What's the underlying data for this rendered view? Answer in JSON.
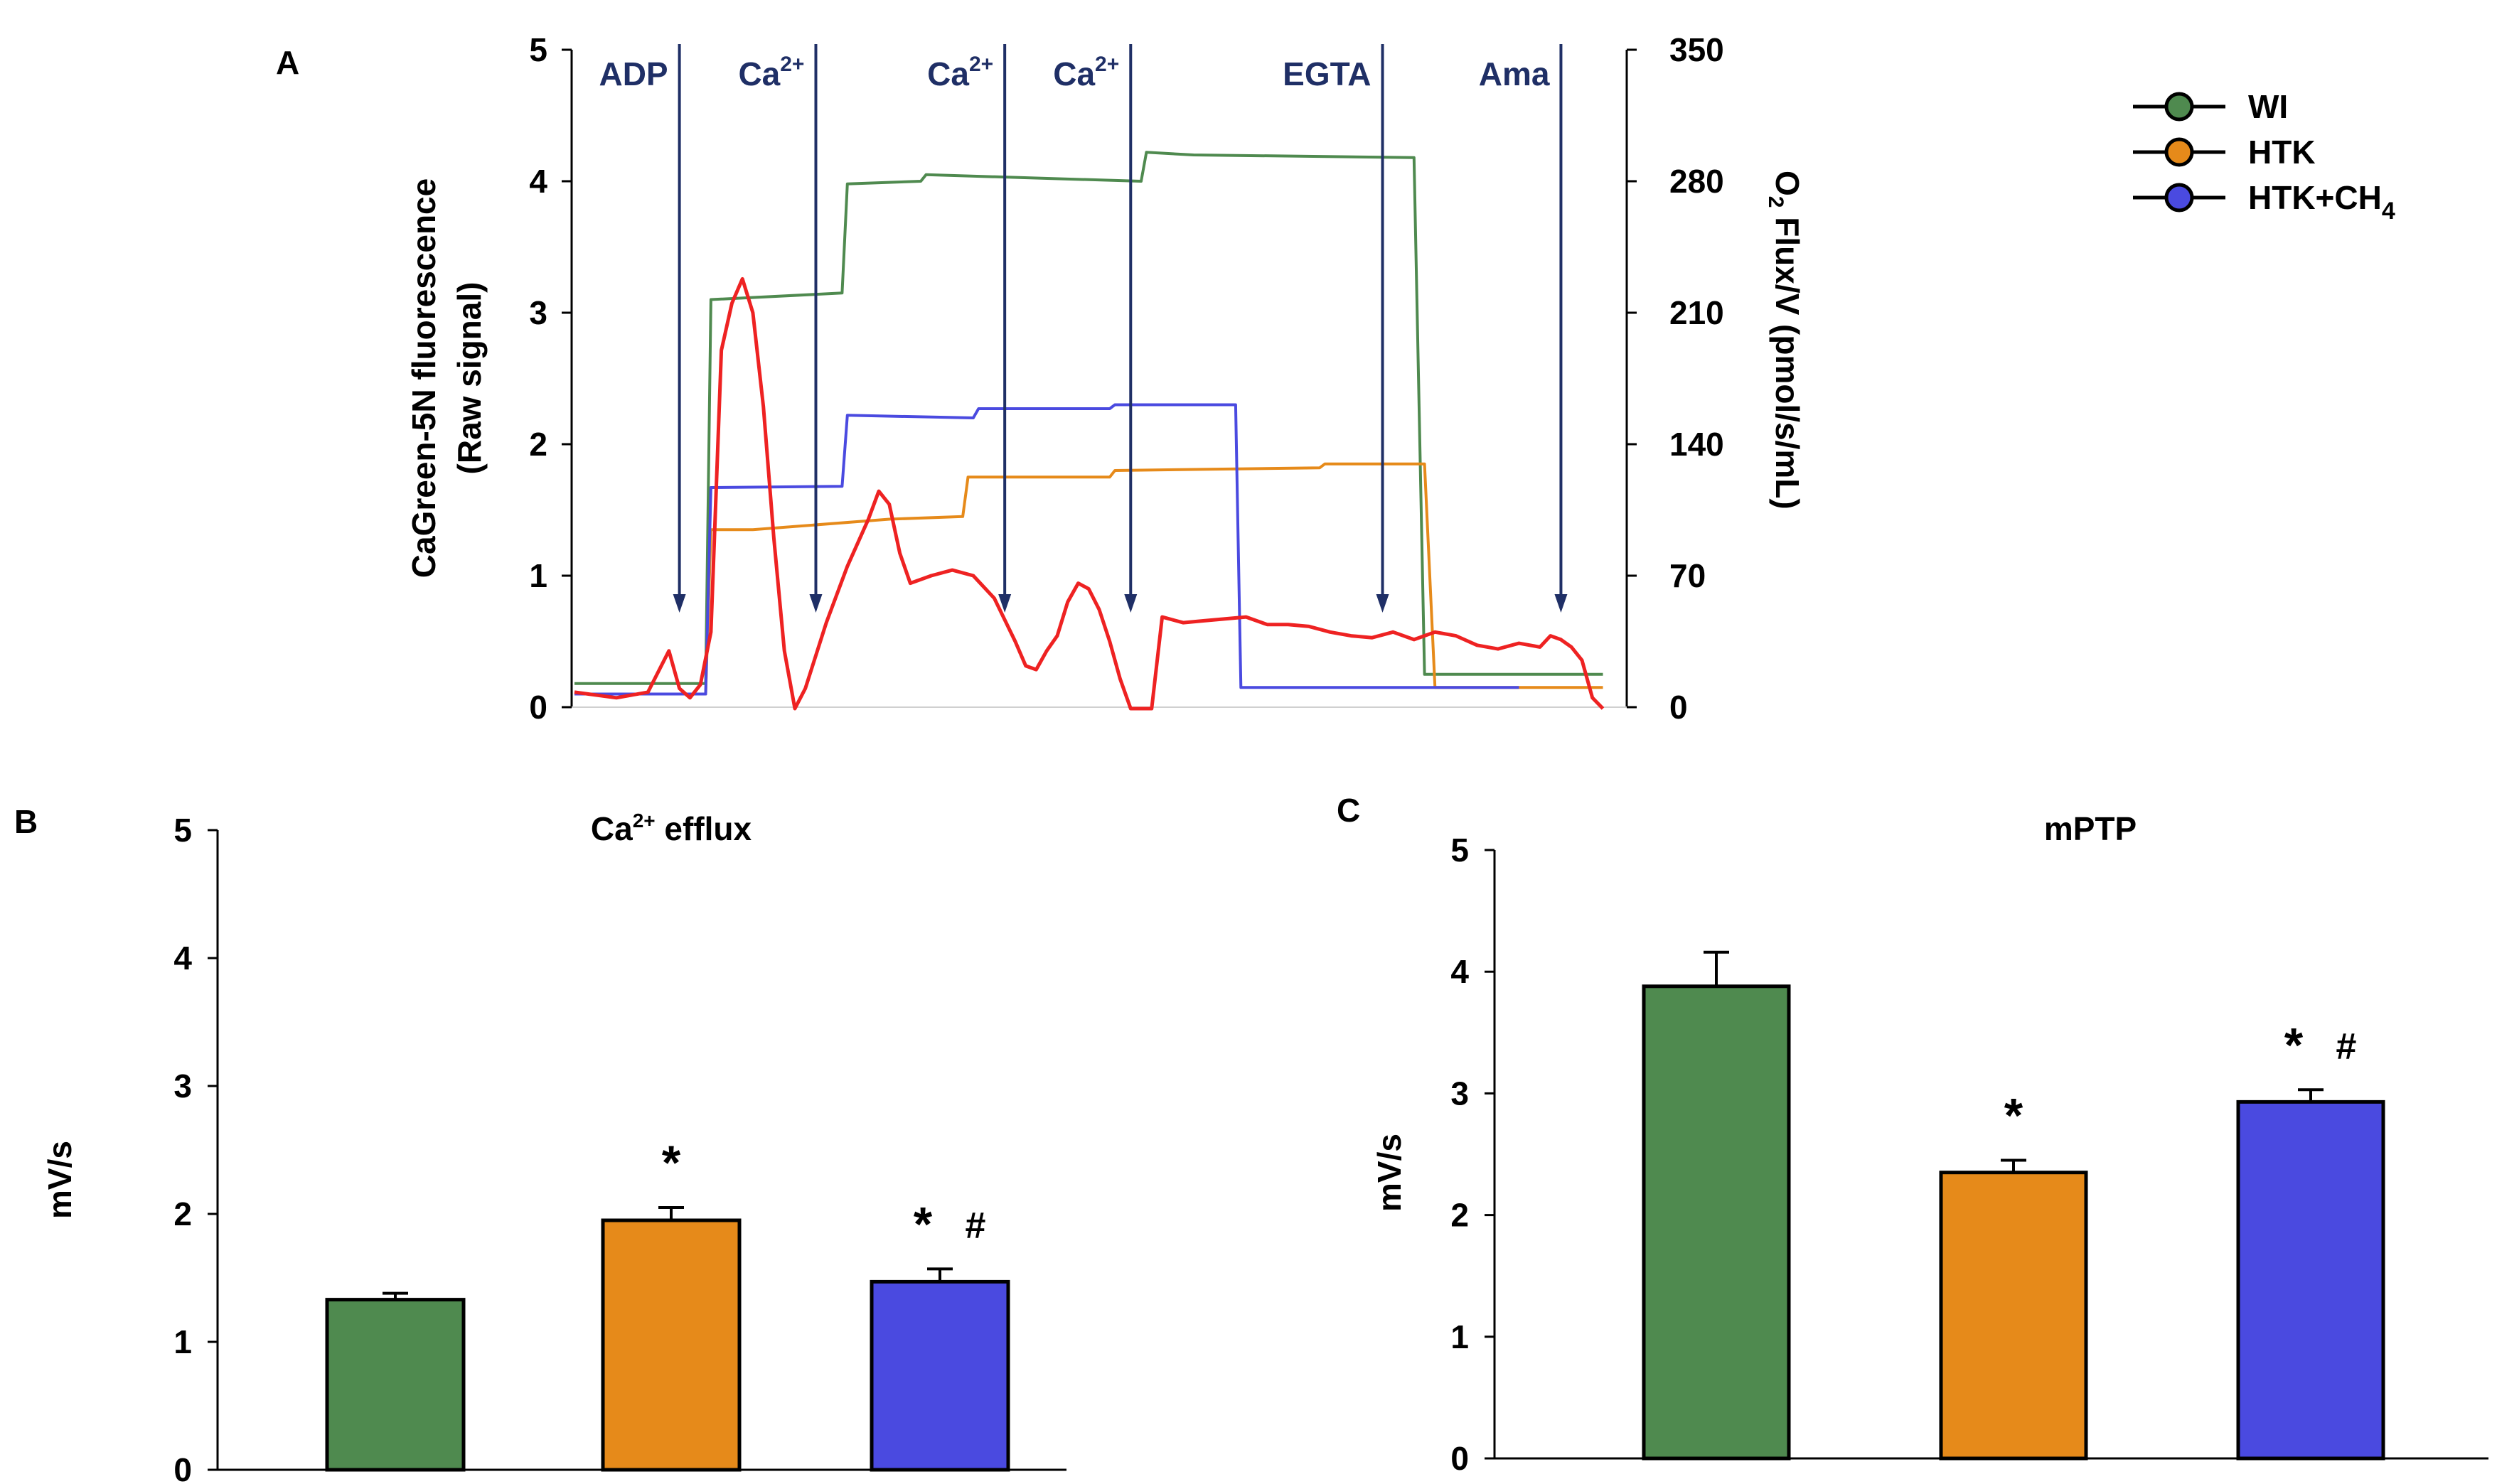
{
  "panels": {
    "a": {
      "letter": "A"
    },
    "b": {
      "letter": "B"
    },
    "c": {
      "letter": "C"
    }
  },
  "legend": [
    {
      "label": "WI",
      "color": "#4f8a4f"
    },
    {
      "label": "HTK",
      "color": "#e68a1a"
    },
    {
      "label": "HTK+CH",
      "sub": "4",
      "color": "#4a4ae0"
    }
  ],
  "colors": {
    "wi": "#4f8a4f",
    "htk": "#e68a1a",
    "htkch4": "#4a4ae0",
    "o2": "#ee2222",
    "annotation": "#1f2f66"
  },
  "chart_data": [
    {
      "type": "line",
      "panel": "A",
      "ylabel_left_1": "CaGreen-5N fluorescence",
      "ylabel_left_2": "(Raw signal)",
      "ylabel_right_main": "O",
      "ylabel_right_sub": "2",
      "ylabel_right_rest": " Flux/V (pmol/s/mL)",
      "ylim_left": [
        0,
        5
      ],
      "ylim_right": [
        0,
        350
      ],
      "yticks_left": [
        "0",
        "1",
        "2",
        "3",
        "4",
        "5"
      ],
      "yticks_right": [
        "0",
        "70",
        "140",
        "210",
        "280",
        "350"
      ],
      "xlim": [
        0,
        100
      ],
      "additions": [
        {
          "label": "ADP",
          "sup": "",
          "x": 10
        },
        {
          "label": "Ca",
          "sup": "2+",
          "x": 23
        },
        {
          "label": "Ca",
          "sup": "2+",
          "x": 41
        },
        {
          "label": "Ca",
          "sup": "2+",
          "x": 53
        },
        {
          "label": "EGTA",
          "sup": "",
          "x": 77
        },
        {
          "label": "Ama",
          "sup": "",
          "x": 94
        }
      ],
      "series": [
        {
          "name": "WI",
          "axis": "left",
          "points": [
            [
              0,
              0.18
            ],
            [
              12.5,
              0.18
            ],
            [
              13,
              3.1
            ],
            [
              25.5,
              3.15
            ],
            [
              26,
              3.98
            ],
            [
              33,
              4.0
            ],
            [
              33.5,
              4.05
            ],
            [
              54,
              4.0
            ],
            [
              54.5,
              4.22
            ],
            [
              59,
              4.2
            ],
            [
              80,
              4.18
            ],
            [
              81,
              0.25
            ],
            [
              98,
              0.25
            ]
          ]
        },
        {
          "name": "HTK",
          "axis": "left",
          "points": [
            [
              0,
              0.1
            ],
            [
              12.5,
              0.1
            ],
            [
              13,
              1.35
            ],
            [
              17,
              1.35
            ],
            [
              30,
              1.43
            ],
            [
              37,
              1.45
            ],
            [
              37.5,
              1.75
            ],
            [
              51,
              1.75
            ],
            [
              51.5,
              1.8
            ],
            [
              71,
              1.82
            ],
            [
              71.5,
              1.85
            ],
            [
              81,
              1.85
            ],
            [
              82,
              0.15
            ],
            [
              98,
              0.15
            ]
          ]
        },
        {
          "name": "HTK+CH4",
          "axis": "left",
          "points": [
            [
              0,
              0.1
            ],
            [
              12.5,
              0.1
            ],
            [
              13,
              1.67
            ],
            [
              25.5,
              1.68
            ],
            [
              26,
              2.22
            ],
            [
              38,
              2.2
            ],
            [
              38.5,
              2.27
            ],
            [
              51,
              2.27
            ],
            [
              51.5,
              2.3
            ],
            [
              63,
              2.3
            ],
            [
              63.5,
              0.15
            ],
            [
              90,
              0.15
            ]
          ]
        },
        {
          "name": "O2 flux",
          "axis": "right",
          "points": [
            [
              0,
              8
            ],
            [
              4,
              5
            ],
            [
              7,
              8
            ],
            [
              9,
              30
            ],
            [
              10,
              10
            ],
            [
              11,
              5
            ],
            [
              12,
              12
            ],
            [
              13,
              40
            ],
            [
              14,
              190
            ],
            [
              15,
              215
            ],
            [
              16,
              228
            ],
            [
              17,
              210
            ],
            [
              18,
              160
            ],
            [
              19,
              90
            ],
            [
              20,
              30
            ],
            [
              21,
              -5
            ],
            [
              22,
              10
            ],
            [
              24,
              45
            ],
            [
              26,
              75
            ],
            [
              28,
              100
            ],
            [
              29,
              115
            ],
            [
              30,
              108
            ],
            [
              31,
              82
            ],
            [
              32,
              66
            ],
            [
              34,
              70
            ],
            [
              36,
              73
            ],
            [
              38,
              70
            ],
            [
              40,
              58
            ],
            [
              42,
              35
            ],
            [
              43,
              22
            ],
            [
              44,
              20
            ],
            [
              45,
              30
            ],
            [
              46,
              38
            ],
            [
              47,
              56
            ],
            [
              48,
              66
            ],
            [
              49,
              63
            ],
            [
              50,
              52
            ],
            [
              51,
              35
            ],
            [
              52,
              15
            ],
            [
              53,
              -5
            ],
            [
              55,
              -5
            ],
            [
              56,
              48
            ],
            [
              58,
              45
            ],
            [
              60,
              46
            ],
            [
              62,
              47
            ],
            [
              64,
              48
            ],
            [
              66,
              44
            ],
            [
              68,
              44
            ],
            [
              70,
              43
            ],
            [
              72,
              40
            ],
            [
              74,
              38
            ],
            [
              76,
              37
            ],
            [
              78,
              40
            ],
            [
              80,
              36
            ],
            [
              82,
              40
            ],
            [
              84,
              38
            ],
            [
              86,
              33
            ],
            [
              88,
              31
            ],
            [
              90,
              34
            ],
            [
              92,
              32
            ],
            [
              93,
              38
            ],
            [
              94,
              36
            ],
            [
              95,
              32
            ],
            [
              96,
              25
            ],
            [
              97,
              5
            ],
            [
              98,
              -10
            ]
          ]
        }
      ]
    },
    {
      "type": "bar",
      "panel": "B",
      "title": "Ca",
      "title_sup": "2+",
      "title_rest": " efflux",
      "ylabel": "mV/s",
      "ylim": [
        0,
        5
      ],
      "yticks": [
        "0",
        "1",
        "2",
        "3",
        "4",
        "5"
      ],
      "categories": [
        "WI",
        "HTK",
        "HTK+CH4"
      ],
      "values": [
        1.33,
        1.95,
        1.47
      ],
      "errors": [
        0.05,
        0.1,
        0.1
      ],
      "annotations": [
        "",
        "*",
        "* #"
      ]
    },
    {
      "type": "bar",
      "panel": "C",
      "title": "mPTP",
      "ylabel": "mV/s",
      "ylim": [
        0,
        5
      ],
      "yticks": [
        "0",
        "1",
        "2",
        "3",
        "4",
        "5"
      ],
      "categories": [
        "WI",
        "HTK",
        "HTK+CH4"
      ],
      "values": [
        3.88,
        2.35,
        2.93
      ],
      "errors": [
        0.28,
        0.1,
        0.1
      ],
      "annotations": [
        "",
        "*",
        "* #"
      ]
    }
  ]
}
